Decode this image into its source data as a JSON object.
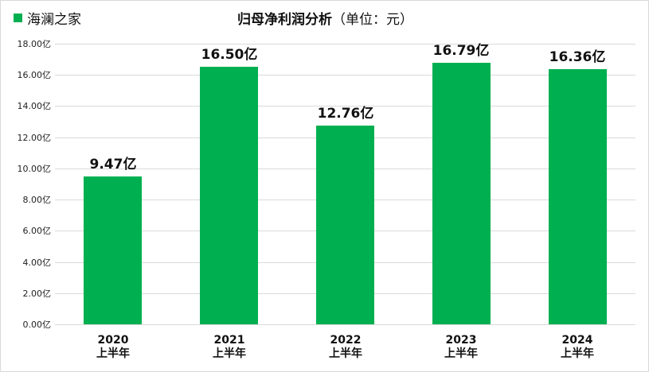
{
  "legend": {
    "label": "海澜之家",
    "color": "#00B050"
  },
  "header": {
    "title_bold": "归母净利润分析",
    "title_unit": "（单位：元）"
  },
  "colors": {
    "bar": "#00B050",
    "grid": "#D9D9D9",
    "text": "#111111"
  },
  "chart_data": {
    "type": "bar",
    "title": "归母净利润分析（单位：元）",
    "xlabel": "",
    "ylabel": "",
    "categories": [
      "2020上半年",
      "2021上半年",
      "2022上半年",
      "2023上半年",
      "2024上半年"
    ],
    "x_tick_lines": [
      [
        "2020",
        "上半年"
      ],
      [
        "2021",
        "上半年"
      ],
      [
        "2022",
        "上半年"
      ],
      [
        "2023",
        "上半年"
      ],
      [
        "2024",
        "上半年"
      ]
    ],
    "series": [
      {
        "name": "海澜之家",
        "values": [
          9.47,
          16.5,
          12.76,
          16.79,
          16.36
        ],
        "color": "#00B050"
      }
    ],
    "data_labels": [
      "9.47亿",
      "16.50亿",
      "12.76亿",
      "16.79亿",
      "16.36亿"
    ],
    "ylim": [
      0,
      18
    ],
    "yticks": [
      "0.00亿",
      "2.00亿",
      "4.00亿",
      "6.00亿",
      "8.00亿",
      "10.00亿",
      "12.00亿",
      "14.00亿",
      "16.00亿",
      "18.00亿"
    ],
    "ytick_values": [
      0,
      2,
      4,
      6,
      8,
      10,
      12,
      14,
      16,
      18
    ],
    "grid": true,
    "legend_position": "top-left"
  }
}
